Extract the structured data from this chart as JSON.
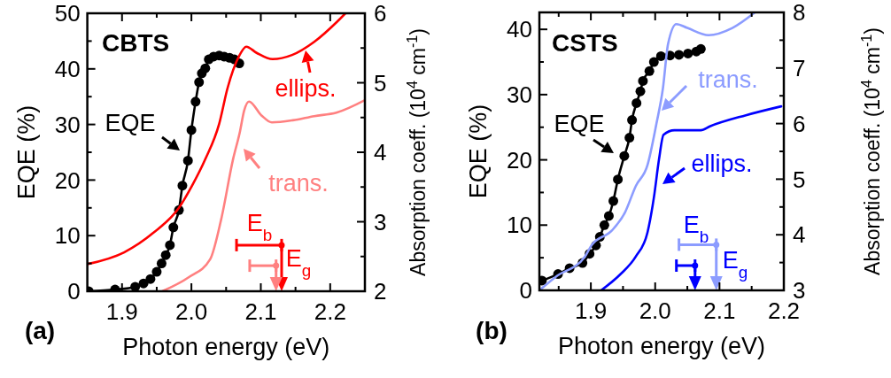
{
  "chart_data": [
    {
      "type": "line",
      "xlabel": "Photon energy (eV)",
      "ylabel": "EQE (%)",
      "y2label": "Absorption coeff. (10$^{4}$ cm$^{-1}$)",
      "xlim": [
        1.85,
        2.25
      ],
      "xticks": [
        1.9,
        {
          "value": 1.95,
          "label": null
        },
        {
          "value": 2,
          "label": "2.0"
        },
        {
          "value": 2.05,
          "label": null
        },
        2.1,
        {
          "value": 2.15,
          "label": null
        },
        2.2
      ],
      "ylim": [
        0,
        50
      ],
      "yticks": [
        0,
        {
          "value": 5,
          "label": null
        },
        10,
        {
          "value": 15,
          "label": null
        },
        20,
        {
          "value": 25,
          "label": null
        },
        30,
        {
          "value": 35,
          "label": null
        },
        40,
        {
          "value": 45,
          "label": null
        },
        50
      ],
      "y2lim": [
        2,
        6
      ],
      "y2ticks": [
        2,
        {
          "value": 2.5,
          "label": null
        },
        3,
        {
          "value": 3.5,
          "label": null
        },
        4,
        {
          "value": 4.5,
          "label": null
        },
        5,
        {
          "value": 5.5,
          "label": null
        },
        6
      ],
      "series": [
        {
          "marker": "circle",
          "color": "#000000",
          "x": [
            1.852,
            1.89,
            1.919,
            1.931,
            1.941,
            1.95,
            1.957,
            1.963,
            1.969,
            1.974,
            1.982,
            1.987,
            1.995,
            2.0,
            2.006,
            2.011,
            2.015,
            2.02,
            2.025,
            2.032,
            2.04,
            2.047,
            2.055,
            2.062,
            2.069
          ],
          "values": [
            0,
            0.3,
            0.8,
            1.4,
            2.2,
            3.5,
            5.0,
            6.5,
            8.3,
            11.5,
            14.6,
            19.0,
            23.5,
            29.0,
            34.1,
            37.6,
            39.2,
            40.1,
            41.7,
            42.2,
            42.4,
            42.2,
            42.0,
            41.7,
            41.0
          ]
        },
        {
          "axis": "y2",
          "color": "#ff0000",
          "x": [
            1.85,
            1.903,
            1.945,
            1.982,
            2.001,
            2.02,
            2.04,
            2.052,
            2.069,
            2.079,
            2.094,
            2.117,
            2.145,
            2.177,
            2.209,
            2.222
          ],
          "values": [
            2.39,
            2.56,
            2.84,
            3.2,
            3.52,
            3.9,
            4.41,
            4.92,
            5.39,
            5.52,
            5.43,
            5.34,
            5.4,
            5.59,
            5.87,
            6.0
          ]
        },
        {
          "axis": "y2",
          "color": "#ff8080",
          "x": [
            1.958,
            1.996,
            2.027,
            2.043,
            2.06,
            2.07,
            2.076,
            2.083,
            2.101,
            2.116,
            2.146,
            2.177,
            2.209,
            2.25
          ],
          "values": [
            2.0,
            2.2,
            2.46,
            3.04,
            3.9,
            4.3,
            4.6,
            4.73,
            4.53,
            4.43,
            4.46,
            4.52,
            4.57,
            4.75
          ]
        },
        {
          "type": "scatter",
          "color": "#ff0000",
          "x": [
            2.13
          ],
          "values": [
            8.3
          ],
          "xerrors": [
            [
              2.065,
              2.13
            ]
          ]
        },
        {
          "type": "scatter",
          "color": "#ff8080",
          "x": [
            2.122
          ],
          "values": [
            4.6
          ],
          "xerrors": [
            [
              2.084,
              2.122
            ]
          ]
        }
      ],
      "annotations": [
        "(a)",
        "CBTS",
        "EQE",
        "ellips.",
        "trans.",
        "E$_{b}$",
        "E$_{g}$"
      ]
    },
    {
      "type": "line",
      "xlabel": "Photon energy (eV)",
      "ylabel": "EQE (%)",
      "y2label": "Absorption coeff. (10$^{4}$ cm$^{-1}$)",
      "xlim": [
        1.82,
        2.2
      ],
      "xticks": [
        {
          "value": 1.85,
          "label": null
        },
        1.9,
        {
          "value": 1.95,
          "label": null
        },
        {
          "value": 2,
          "label": "2.0"
        },
        {
          "value": 2.05,
          "label": null
        },
        2.1,
        {
          "value": 2.15,
          "label": null
        },
        2.2
      ],
      "ylim": [
        0,
        42.6
      ],
      "yticks": [
        0,
        {
          "value": 5,
          "label": null
        },
        10,
        {
          "value": 15,
          "label": null
        },
        20,
        {
          "value": 25,
          "label": null
        },
        30,
        {
          "value": 35,
          "label": null
        },
        40
      ],
      "y2lim": [
        3,
        8
      ],
      "y2ticks": [
        3,
        {
          "value": 3.5,
          "label": null
        },
        4,
        {
          "value": 4.5,
          "label": null
        },
        5,
        {
          "value": 5.5,
          "label": null
        },
        6,
        {
          "value": 6.5,
          "label": null
        },
        7,
        {
          "value": 7.5,
          "label": null
        },
        8
      ],
      "series": [
        {
          "marker": "circle",
          "color": "#000000",
          "x": [
            1.824,
            1.849,
            1.867,
            1.887,
            1.898,
            1.908,
            1.914,
            1.921,
            1.928,
            1.935,
            1.942,
            1.952,
            1.96,
            1.964,
            1.971,
            1.977,
            1.981,
            1.991,
            1.998,
            2.009,
            2.023,
            2.037,
            2.051,
            2.064,
            2.071
          ],
          "values": [
            1.5,
            2.5,
            3.4,
            4.2,
            5.6,
            6.9,
            8.2,
            10.0,
            11.4,
            13.7,
            17.0,
            20.6,
            23.4,
            26.1,
            28.7,
            30.5,
            32.1,
            33.6,
            35.0,
            35.9,
            36.0,
            36.1,
            36.3,
            36.6,
            37.0
          ]
        },
        {
          "axis": "y2",
          "color": "#8c9cff",
          "x": [
            1.82,
            1.845,
            1.891,
            1.901,
            1.933,
            1.953,
            1.97,
            1.988,
            2.002,
            2.012,
            2.02,
            2.033,
            2.05,
            2.083,
            2.12,
            2.155
          ],
          "values": [
            3.0,
            3.24,
            3.61,
            3.81,
            4.08,
            4.4,
            4.88,
            5.25,
            6.0,
            6.63,
            7.43,
            7.79,
            7.72,
            7.59,
            7.72,
            8.0
          ]
        },
        {
          "axis": "y2",
          "color": "#0000ff",
          "x": [
            1.916,
            1.946,
            1.97,
            1.988,
            1.998,
            2.006,
            2.013,
            2.03,
            2.071,
            2.085,
            2.141,
            2.196
          ],
          "values": [
            3.0,
            3.29,
            3.61,
            4.04,
            4.67,
            5.36,
            5.8,
            5.88,
            5.88,
            5.95,
            6.15,
            6.31
          ]
        },
        {
          "type": "scatter",
          "color": "#8c9cff",
          "x": [
            2.095
          ],
          "values": [
            7.0
          ],
          "xerrors": [
            [
              2.037,
              2.095
            ]
          ]
        },
        {
          "type": "scatter",
          "color": "#0000ff",
          "x": [
            2.062
          ],
          "values": [
            3.8
          ],
          "xerrors": [
            [
              2.033,
              2.062
            ]
          ]
        }
      ],
      "annotations": [
        "(b)",
        "CSTS",
        "EQE",
        "trans.",
        "ellips.",
        "E$_{b}$",
        "E$_{g}$"
      ]
    }
  ]
}
